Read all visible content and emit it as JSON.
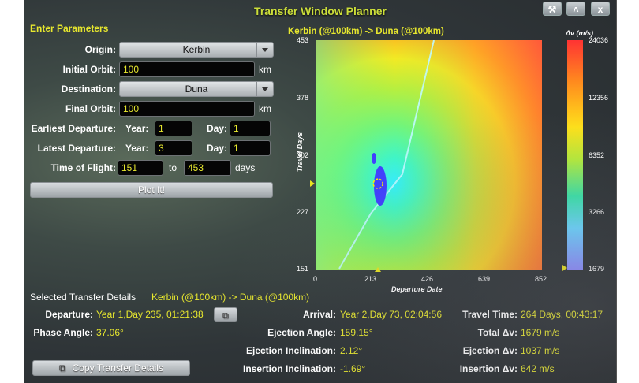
{
  "window": {
    "title": "Transfer Window Planner",
    "buttons": [
      "⚒",
      "˄",
      "x"
    ]
  },
  "params": {
    "heading": "Enter Parameters",
    "origin_label": "Origin:",
    "origin_value": "Kerbin",
    "initial_orbit_label": "Initial Orbit:",
    "initial_orbit_value": "100",
    "km": "km",
    "destination_label": "Destination:",
    "destination_value": "Duna",
    "final_orbit_label": "Final Orbit:",
    "final_orbit_value": "100",
    "earliest_label": "Earliest Departure:",
    "latest_label": "Latest Departure:",
    "year_label": "Year:",
    "day_label": "Day:",
    "earliest_year": "1",
    "earliest_day": "1",
    "latest_year": "3",
    "latest_day": "1",
    "tof_label": "Time of Flight:",
    "tof_min": "151",
    "tof_to": "to",
    "tof_max": "453",
    "days": "days",
    "plot_button": "Plot It!"
  },
  "plot": {
    "title": "Kerbin (@100km) -> Duna (@100km)",
    "y_label": "Travel Days",
    "x_label": "Departure Date",
    "y_ticks": [
      "453",
      "378",
      "302",
      "227",
      "151"
    ],
    "x_ticks": [
      "0",
      "213",
      "426",
      "639",
      "852"
    ],
    "legend_title": "Δv (m/s)",
    "legend_ticks": [
      "24036",
      "12356",
      "6352",
      "3266",
      "1679"
    ],
    "selected_departure_day": 235,
    "selected_travel_days": 264,
    "colors": {
      "min": "#3b3bff",
      "low": "#3cf0ff",
      "mid": "#aaff55",
      "high": "#ff3333"
    }
  },
  "chart_data": {
    "type": "heatmap",
    "title": "Kerbin (@100km) -> Duna (@100km)",
    "xlabel": "Departure Date",
    "ylabel": "Travel Days",
    "xlim": [
      0,
      852
    ],
    "ylim": [
      151,
      453
    ],
    "x_ticks": [
      0,
      213,
      426,
      639,
      852
    ],
    "y_ticks": [
      151,
      227,
      302,
      378,
      453
    ],
    "colorbar_label": "Δv (m/s)",
    "colorbar_ticks": [
      1679,
      3266,
      6352,
      12356,
      24036
    ],
    "selected_point": {
      "x": 235,
      "y": 264,
      "value": 1679
    }
  },
  "details": {
    "heading": "Selected Transfer Details",
    "route": "Kerbin (@100km) -> Duna (@100km)",
    "departure_label": "Departure:",
    "departure_value": "Year 1,Day 235, 01:21:38",
    "arrival_label": "Arrival:",
    "arrival_value": "Year 2,Day 73, 02:04:56",
    "travel_label": "Travel Time:",
    "travel_value": "264 Days, 00:43:17",
    "phase_label": "Phase Angle:",
    "phase_value": "37.06°",
    "ejection_angle_label": "Ejection Angle:",
    "ejection_angle_value": "159.15°",
    "total_dv_label": "Total Δv:",
    "total_dv_value": "1679 m/s",
    "ejection_incl_label": "Ejection Inclination:",
    "ejection_incl_value": "2.12°",
    "ejection_dv_label": "Ejection Δv:",
    "ejection_dv_value": "1037 m/s",
    "insertion_incl_label": "Insertion Inclination:",
    "insertion_incl_value": "-1.69°",
    "insertion_dv_label": "Insertion Δv:",
    "insertion_dv_value": "642 m/s",
    "copy_button": "Copy Transfer Details"
  }
}
